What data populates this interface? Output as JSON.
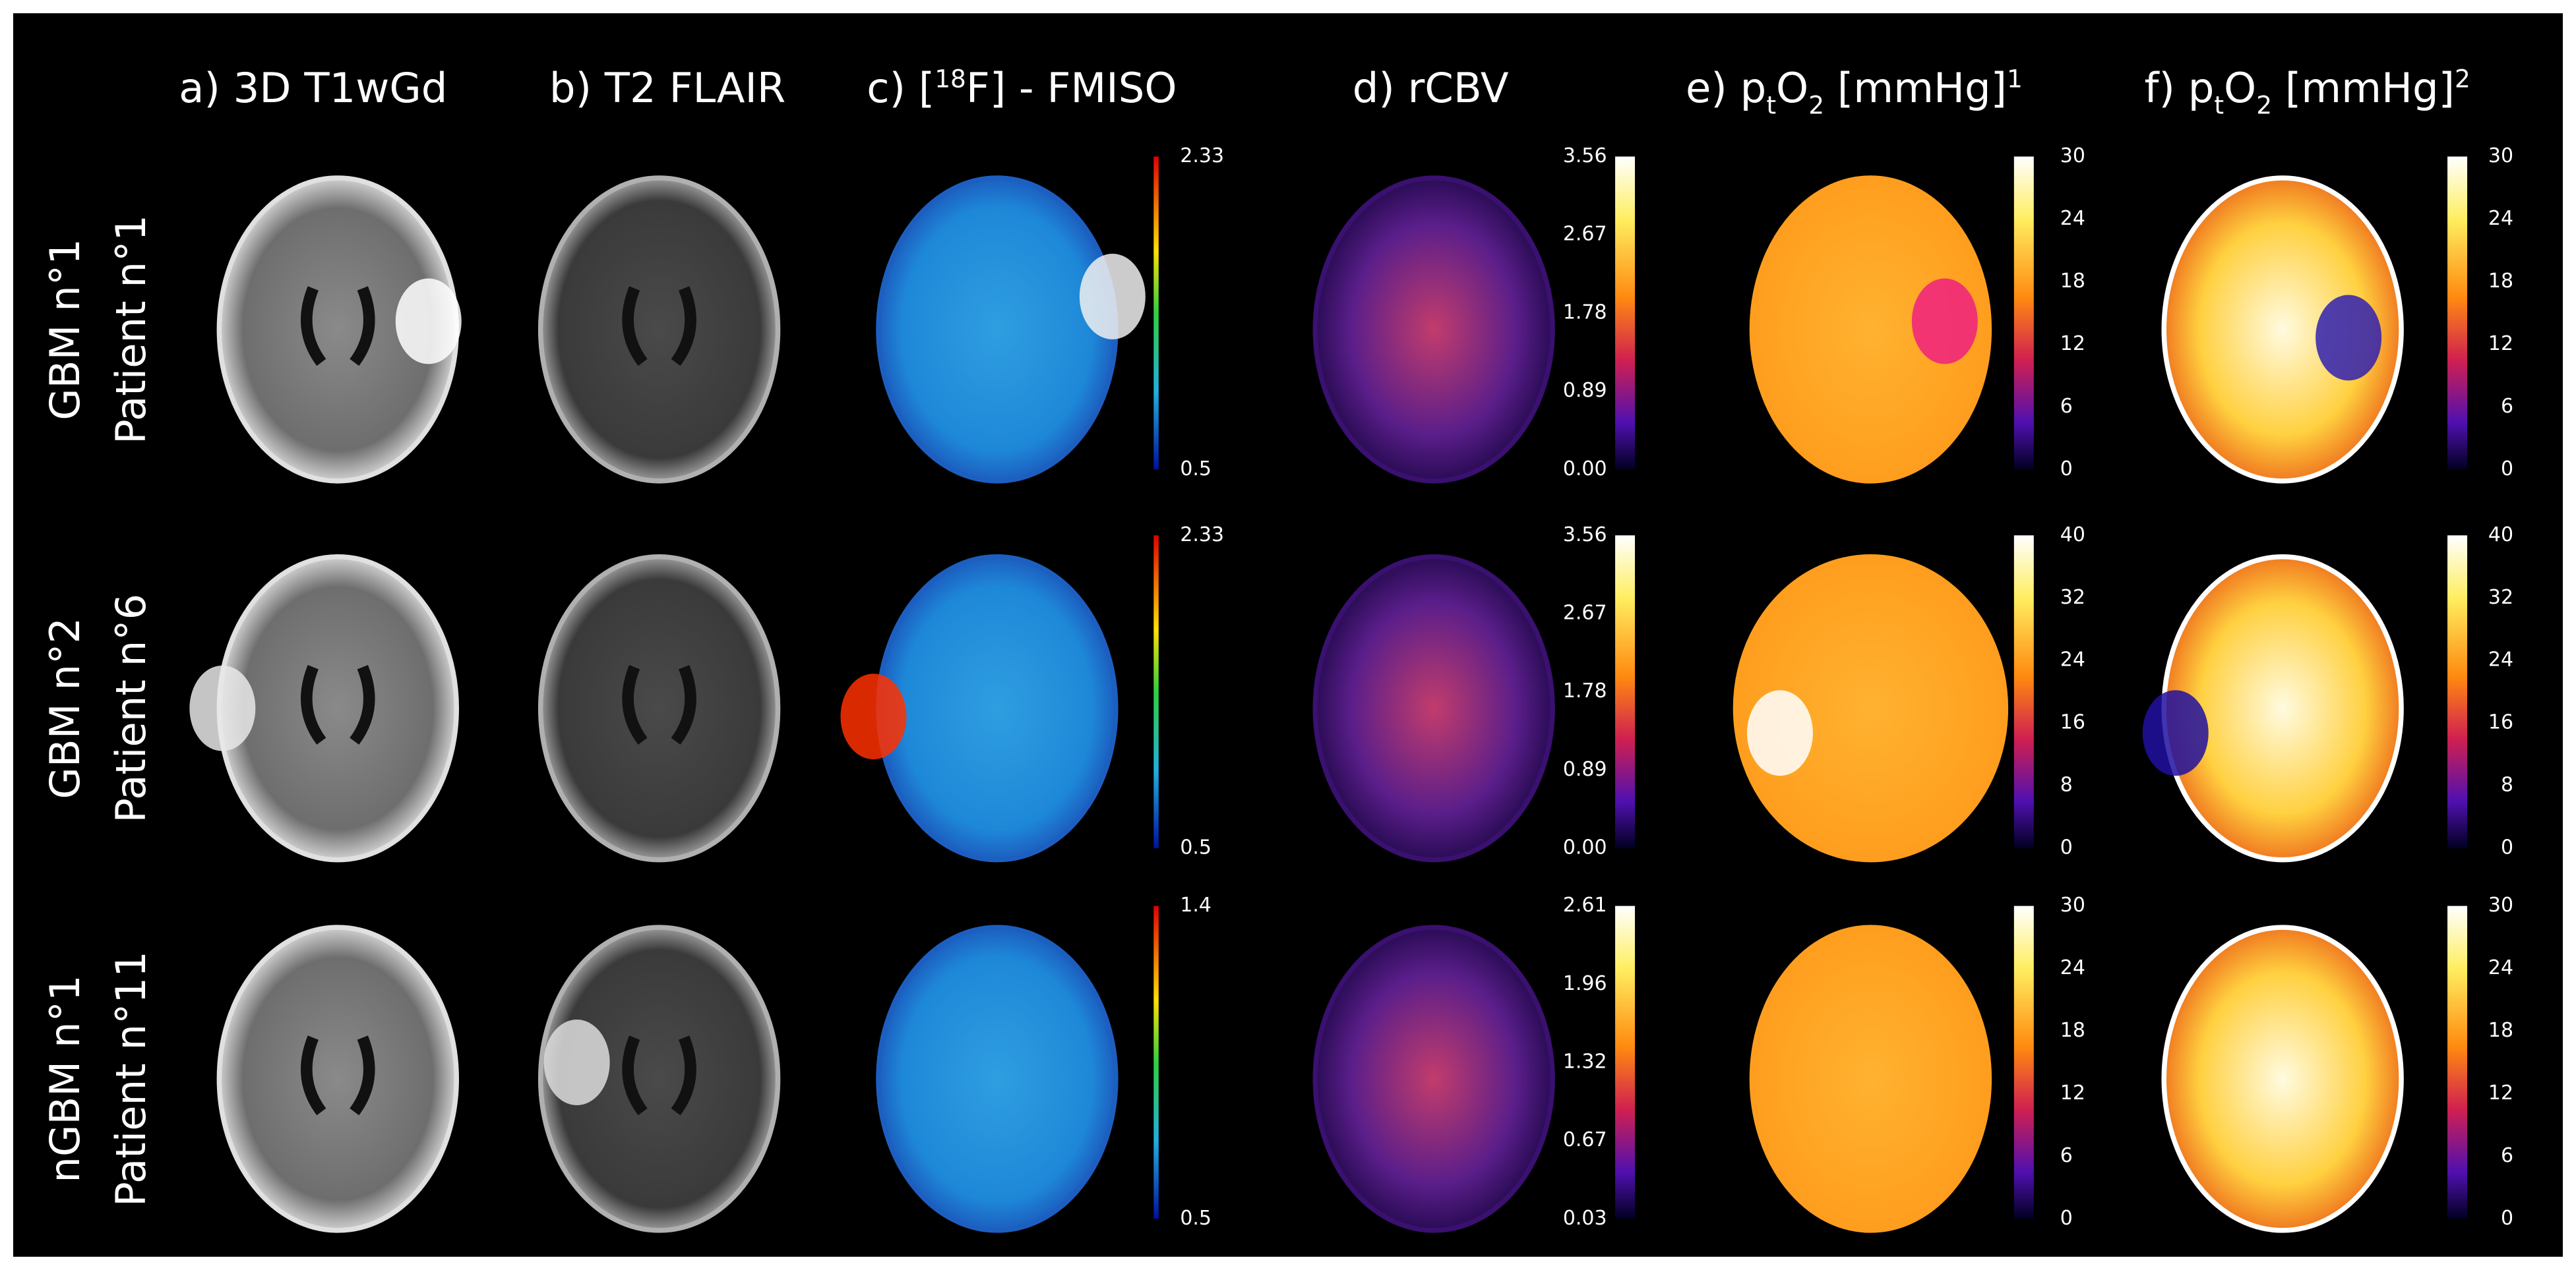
{
  "headers": [
    [
      "a) 3D T1wGd"
    ],
    [
      "b) T2 FLAIR"
    ],
    [
      "c) [",
      "18",
      "F] - FMISO"
    ],
    [
      "d) rCBV"
    ],
    [
      "e) p",
      "t",
      "O",
      "2",
      " [mmHg]",
      "1"
    ],
    [
      "f) p",
      "t",
      "O",
      "2",
      " [mmHg]",
      "2"
    ]
  ],
  "rows": [
    {
      "label": [
        "GBM n°1",
        "Patient n°1"
      ],
      "fmiso_scale": [
        "2.33",
        "0.5"
      ],
      "rcbv_scale": [
        "3.56",
        "2.67",
        "1.78",
        "0.89",
        "0.00"
      ],
      "pto2_1_scale": [
        "30",
        "24",
        "18",
        "12",
        "6",
        "0"
      ],
      "pto2_2_scale": [
        "30",
        "24",
        "18",
        "12",
        "6",
        "0"
      ]
    },
    {
      "label": [
        "GBM n°2",
        "Patient n°6"
      ],
      "fmiso_scale": [
        "2.33",
        "0.5"
      ],
      "rcbv_scale": [
        "3.56",
        "2.67",
        "1.78",
        "0.89",
        "0.00"
      ],
      "pto2_1_scale": [
        "40",
        "32",
        "24",
        "16",
        "8",
        "0"
      ],
      "pto2_2_scale": [
        "40",
        "32",
        "24",
        "16",
        "8",
        "0"
      ]
    },
    {
      "label": [
        "nGBM n°1",
        "Patient n°11"
      ],
      "fmiso_scale": [
        "1.4",
        "0.5"
      ],
      "rcbv_scale": [
        "2.61",
        "1.96",
        "1.32",
        "0.67",
        "0.03"
      ],
      "pto2_1_scale": [
        "30",
        "24",
        "18",
        "12",
        "6",
        "0"
      ],
      "pto2_2_scale": [
        "30",
        "24",
        "18",
        "12",
        "6",
        "0"
      ]
    }
  ]
}
